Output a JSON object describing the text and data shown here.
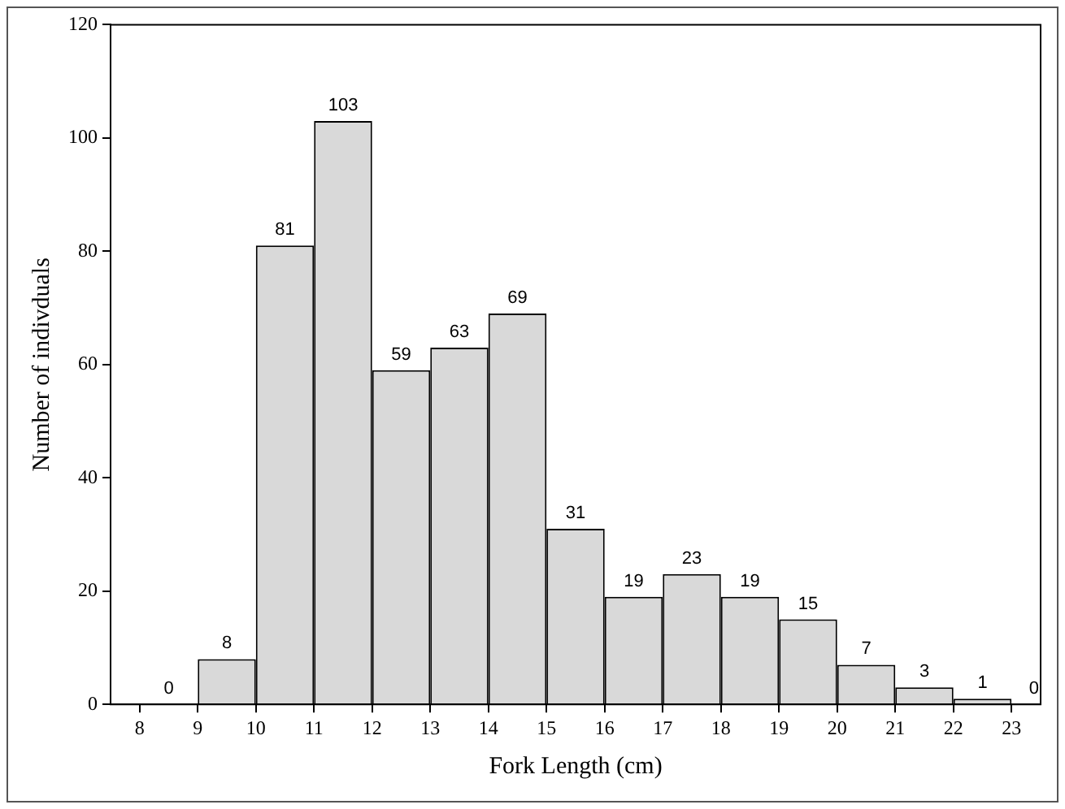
{
  "chart_data": {
    "type": "histogram",
    "xlabel": "Fork Length (cm)",
    "ylabel": "Number of indivduals",
    "bins": [
      8,
      9,
      10,
      11,
      12,
      13,
      14,
      15,
      16,
      17,
      18,
      19,
      20,
      21,
      22,
      23
    ],
    "values": [
      0,
      8,
      81,
      103,
      59,
      63,
      69,
      31,
      19,
      23,
      19,
      15,
      7,
      3,
      1
    ],
    "color": "#d9d9d9",
    "xlim": [
      7.5,
      23.5
    ],
    "xticks": [
      8,
      9,
      10,
      11,
      12,
      13,
      14,
      15,
      16,
      17,
      18,
      19,
      20,
      21,
      22,
      23
    ],
    "ylim": [
      0,
      120
    ],
    "yticks": [
      0,
      20,
      40,
      60,
      80,
      100,
      120
    ],
    "annotations": [
      "0"
    ],
    "data_labels": true,
    "grid": false,
    "legend": false
  }
}
